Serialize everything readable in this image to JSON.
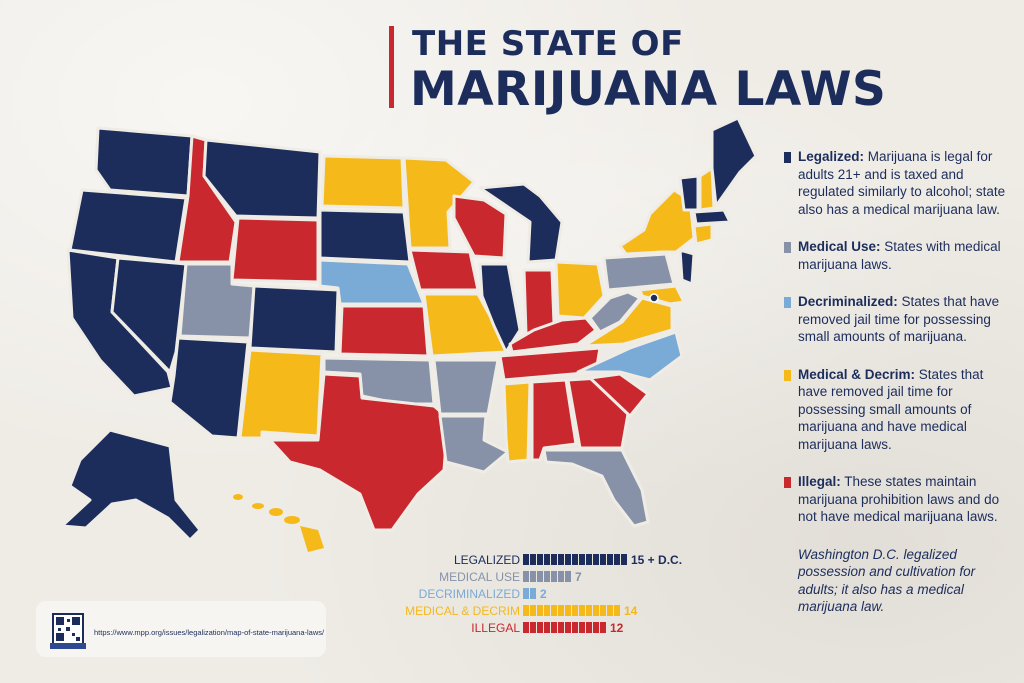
{
  "title": {
    "line1": "THE STATE OF",
    "line2": "MARIJUANA LAWS"
  },
  "colors": {
    "legalized": "#1c2d5c",
    "medical": "#8792a8",
    "decriminalized": "#7aaad6",
    "medical_decrim": "#f5b91a",
    "illegal": "#c8282e",
    "title": "#1c2d5c",
    "background": "#efece6"
  },
  "legend": [
    {
      "key": "legalized",
      "term": "Legalized:",
      "text": " Marijuana is legal for adults 21+ and is taxed and regulated similarly to alcohol; state also has a medical marijuana law."
    },
    {
      "key": "medical",
      "term": "Medical Use:",
      "text": " States with medical marijuana laws."
    },
    {
      "key": "decriminalized",
      "term": "Decriminalized:",
      "text": " States that have removed jail time for possessing small amounts of marijuana."
    },
    {
      "key": "medical_decrim",
      "term": "Medical & Decrim:",
      "text": " States that have removed jail time for possessing small amounts of marijuana and have medical marijuana laws."
    },
    {
      "key": "illegal",
      "term": "Illegal:",
      "text": " These states maintain marijuana prohibition laws and do not have medical marijuana laws."
    }
  ],
  "note": "Washington D.C. legalized possession and cultivation for adults; it also has a medical marijuana law.",
  "chart_data": {
    "type": "bar",
    "categories": [
      "LEGALIZED",
      "MEDICAL USE",
      "DECRIMINALIZED",
      "MEDICAL & DECRIM",
      "ILLEGAL"
    ],
    "values": [
      15,
      7,
      2,
      14,
      12
    ],
    "value_labels": [
      "15 + D.C.",
      "7",
      "2",
      "14",
      "12"
    ],
    "keys": [
      "legalized",
      "medical",
      "decriminalized",
      "medical_decrim",
      "illegal"
    ]
  },
  "source": {
    "url": "https://www.mpp.org/issues/legalization/map-of-state-marijuana-laws/",
    "qr_icon": "qr-code-icon"
  }
}
